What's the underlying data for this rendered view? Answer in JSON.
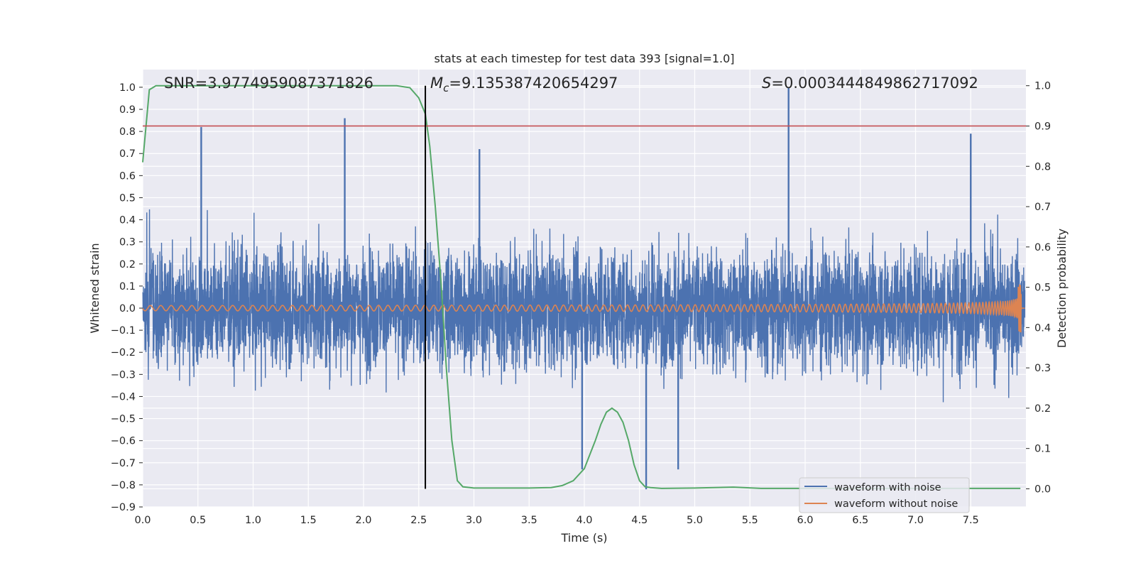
{
  "colors": {
    "background": "#eaeaf2",
    "grid": "#ffffff",
    "noisy": "#4c72b0",
    "clean": "#dd8452",
    "probability": "#55a868",
    "threshold": "#c44e52",
    "marker": "#000000"
  },
  "chart_data": {
    "type": "line",
    "title": "stats at each timestep for test data 393 [signal=1.0]",
    "xlabel": "Time (s)",
    "ylabel": "Whitened strain",
    "y2label": "Detection probability",
    "xlim": [
      0.0,
      8.0
    ],
    "ylim": [
      -0.9,
      1.08
    ],
    "y2lim": [
      -0.045,
      1.04
    ],
    "xticks": [
      "0.0",
      "0.5",
      "1.0",
      "1.5",
      "2.0",
      "2.5",
      "3.0",
      "3.5",
      "4.0",
      "4.5",
      "5.0",
      "5.5",
      "6.0",
      "6.5",
      "7.0",
      "7.5"
    ],
    "yticks": [
      "1.0",
      "0.9",
      "0.8",
      "0.7",
      "0.6",
      "0.5",
      "0.4",
      "0.3",
      "0.2",
      "0.1",
      "0.0",
      "−0.1",
      "−0.2",
      "−0.3",
      "−0.4",
      "−0.5",
      "−0.6",
      "−0.7",
      "−0.8",
      "−0.9"
    ],
    "y2ticks": [
      "1.0",
      "0.9",
      "0.8",
      "0.7",
      "0.6",
      "0.5",
      "0.4",
      "0.3",
      "0.2",
      "0.1",
      "0.0"
    ],
    "annotations": {
      "snr_text": "SNR=3.9774959087371826",
      "mc_symbol": "M",
      "mc_sub": "c",
      "mc_value": "=9.135387420654297",
      "s_symbol": "S",
      "s_value": "=0.0003444849862717092"
    },
    "threshold_probability": 0.9,
    "marker_time": 2.56,
    "series": [
      {
        "name": "waveform with noise",
        "axis": "left",
        "description": "whitened noisy strain, amplitude mostly within ±0.5, occasional spikes",
        "peak_spikes": [
          {
            "t": 0.53,
            "v": 0.82
          },
          {
            "t": 1.83,
            "v": 0.86
          },
          {
            "t": 3.05,
            "v": 0.72
          },
          {
            "t": 4.56,
            "v": -0.82
          },
          {
            "t": 5.85,
            "v": 1.0
          },
          {
            "t": 3.98,
            "v": -0.73
          },
          {
            "t": 4.85,
            "v": -0.73
          },
          {
            "t": 7.5,
            "v": 0.79
          }
        ]
      },
      {
        "name": "waveform without noise",
        "axis": "left",
        "description": "chirp signal, amplitude growing from ~0.01 to ~0.11 near t=7.95 s"
      },
      {
        "name": "detection probability",
        "axis": "right",
        "t": [
          0.0,
          0.06,
          0.12,
          0.3,
          1.0,
          2.0,
          2.3,
          2.42,
          2.5,
          2.56,
          2.6,
          2.65,
          2.7,
          2.75,
          2.8,
          2.85,
          2.9,
          3.0,
          3.5,
          3.7,
          3.8,
          3.9,
          4.0,
          4.1,
          4.15,
          4.2,
          4.25,
          4.3,
          4.35,
          4.4,
          4.45,
          4.5,
          4.55,
          4.6,
          4.7,
          5.0,
          5.35,
          5.6,
          6.0,
          7.0,
          7.95
        ],
        "p": [
          0.81,
          0.99,
          1.0,
          1.0,
          1.0,
          1.0,
          1.0,
          0.995,
          0.97,
          0.93,
          0.85,
          0.7,
          0.52,
          0.3,
          0.12,
          0.02,
          0.005,
          0.002,
          0.002,
          0.003,
          0.008,
          0.02,
          0.05,
          0.12,
          0.16,
          0.19,
          0.2,
          0.19,
          0.165,
          0.12,
          0.06,
          0.02,
          0.005,
          0.003,
          0.001,
          0.002,
          0.004,
          0.001,
          0.001,
          0.001,
          0.001
        ]
      }
    ],
    "legend": {
      "placement": "bottom-right",
      "entries": [
        "waveform with noise",
        "waveform without noise"
      ]
    }
  }
}
